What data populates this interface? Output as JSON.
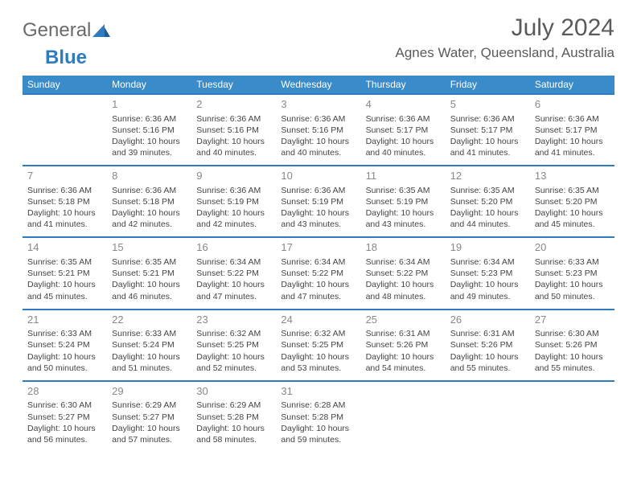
{
  "logo": {
    "word1": "General",
    "word2": "Blue"
  },
  "title": "July 2024",
  "location": "Agnes Water, Queensland, Australia",
  "colors": {
    "header_bg": "#3a8bc9",
    "header_text": "#ffffff",
    "sep_line": "#2f7bbf",
    "cell_border": "#c9c9c9",
    "text": "#444444",
    "daynum": "#888888",
    "logo_gray": "#6a6a6a",
    "logo_blue": "#2f7bbf"
  },
  "days": [
    "Sunday",
    "Monday",
    "Tuesday",
    "Wednesday",
    "Thursday",
    "Friday",
    "Saturday"
  ],
  "weeks": [
    [
      null,
      {
        "n": "1",
        "sr": "6:36 AM",
        "ss": "5:16 PM",
        "dl": "10 hours and 39 minutes."
      },
      {
        "n": "2",
        "sr": "6:36 AM",
        "ss": "5:16 PM",
        "dl": "10 hours and 40 minutes."
      },
      {
        "n": "3",
        "sr": "6:36 AM",
        "ss": "5:16 PM",
        "dl": "10 hours and 40 minutes."
      },
      {
        "n": "4",
        "sr": "6:36 AM",
        "ss": "5:17 PM",
        "dl": "10 hours and 40 minutes."
      },
      {
        "n": "5",
        "sr": "6:36 AM",
        "ss": "5:17 PM",
        "dl": "10 hours and 41 minutes."
      },
      {
        "n": "6",
        "sr": "6:36 AM",
        "ss": "5:17 PM",
        "dl": "10 hours and 41 minutes."
      }
    ],
    [
      {
        "n": "7",
        "sr": "6:36 AM",
        "ss": "5:18 PM",
        "dl": "10 hours and 41 minutes."
      },
      {
        "n": "8",
        "sr": "6:36 AM",
        "ss": "5:18 PM",
        "dl": "10 hours and 42 minutes."
      },
      {
        "n": "9",
        "sr": "6:36 AM",
        "ss": "5:19 PM",
        "dl": "10 hours and 42 minutes."
      },
      {
        "n": "10",
        "sr": "6:36 AM",
        "ss": "5:19 PM",
        "dl": "10 hours and 43 minutes."
      },
      {
        "n": "11",
        "sr": "6:35 AM",
        "ss": "5:19 PM",
        "dl": "10 hours and 43 minutes."
      },
      {
        "n": "12",
        "sr": "6:35 AM",
        "ss": "5:20 PM",
        "dl": "10 hours and 44 minutes."
      },
      {
        "n": "13",
        "sr": "6:35 AM",
        "ss": "5:20 PM",
        "dl": "10 hours and 45 minutes."
      }
    ],
    [
      {
        "n": "14",
        "sr": "6:35 AM",
        "ss": "5:21 PM",
        "dl": "10 hours and 45 minutes."
      },
      {
        "n": "15",
        "sr": "6:35 AM",
        "ss": "5:21 PM",
        "dl": "10 hours and 46 minutes."
      },
      {
        "n": "16",
        "sr": "6:34 AM",
        "ss": "5:22 PM",
        "dl": "10 hours and 47 minutes."
      },
      {
        "n": "17",
        "sr": "6:34 AM",
        "ss": "5:22 PM",
        "dl": "10 hours and 47 minutes."
      },
      {
        "n": "18",
        "sr": "6:34 AM",
        "ss": "5:22 PM",
        "dl": "10 hours and 48 minutes."
      },
      {
        "n": "19",
        "sr": "6:34 AM",
        "ss": "5:23 PM",
        "dl": "10 hours and 49 minutes."
      },
      {
        "n": "20",
        "sr": "6:33 AM",
        "ss": "5:23 PM",
        "dl": "10 hours and 50 minutes."
      }
    ],
    [
      {
        "n": "21",
        "sr": "6:33 AM",
        "ss": "5:24 PM",
        "dl": "10 hours and 50 minutes."
      },
      {
        "n": "22",
        "sr": "6:33 AM",
        "ss": "5:24 PM",
        "dl": "10 hours and 51 minutes."
      },
      {
        "n": "23",
        "sr": "6:32 AM",
        "ss": "5:25 PM",
        "dl": "10 hours and 52 minutes."
      },
      {
        "n": "24",
        "sr": "6:32 AM",
        "ss": "5:25 PM",
        "dl": "10 hours and 53 minutes."
      },
      {
        "n": "25",
        "sr": "6:31 AM",
        "ss": "5:26 PM",
        "dl": "10 hours and 54 minutes."
      },
      {
        "n": "26",
        "sr": "6:31 AM",
        "ss": "5:26 PM",
        "dl": "10 hours and 55 minutes."
      },
      {
        "n": "27",
        "sr": "6:30 AM",
        "ss": "5:26 PM",
        "dl": "10 hours and 55 minutes."
      }
    ],
    [
      {
        "n": "28",
        "sr": "6:30 AM",
        "ss": "5:27 PM",
        "dl": "10 hours and 56 minutes."
      },
      {
        "n": "29",
        "sr": "6:29 AM",
        "ss": "5:27 PM",
        "dl": "10 hours and 57 minutes."
      },
      {
        "n": "30",
        "sr": "6:29 AM",
        "ss": "5:28 PM",
        "dl": "10 hours and 58 minutes."
      },
      {
        "n": "31",
        "sr": "6:28 AM",
        "ss": "5:28 PM",
        "dl": "10 hours and 59 minutes."
      },
      null,
      null,
      null
    ]
  ],
  "labels": {
    "sunrise": "Sunrise:",
    "sunset": "Sunset:",
    "daylight": "Daylight:"
  }
}
